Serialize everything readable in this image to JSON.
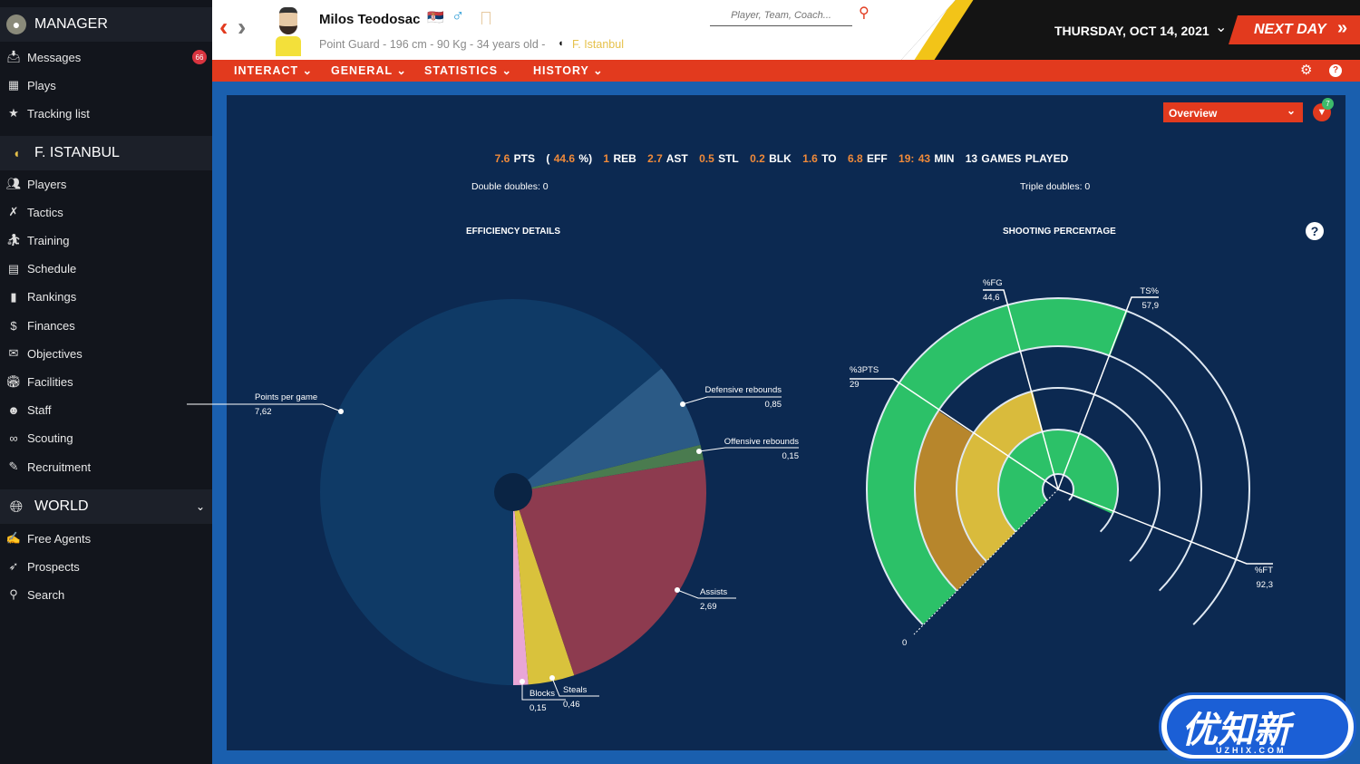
{
  "sidebar": {
    "manager": {
      "title": "MANAGER",
      "items": [
        {
          "label": "Messages",
          "icon": "inbox-icon",
          "badge": "66"
        },
        {
          "label": "Plays",
          "icon": "playbook-icon"
        },
        {
          "label": "Tracking list",
          "icon": "star-icon"
        }
      ]
    },
    "team": {
      "title": "F. ISTANBUL",
      "items": [
        {
          "label": "Players",
          "icon": "players-icon"
        },
        {
          "label": "Tactics",
          "icon": "tactics-icon"
        },
        {
          "label": "Training",
          "icon": "training-icon"
        },
        {
          "label": "Schedule",
          "icon": "calendar-icon"
        },
        {
          "label": "Rankings",
          "icon": "rankings-icon"
        },
        {
          "label": "Finances",
          "icon": "finances-icon"
        },
        {
          "label": "Objectives",
          "icon": "objectives-icon"
        },
        {
          "label": "Facilities",
          "icon": "facilities-icon"
        },
        {
          "label": "Staff",
          "icon": "staff-icon"
        },
        {
          "label": "Scouting",
          "icon": "binoculars-icon"
        },
        {
          "label": "Recruitment",
          "icon": "recruitment-icon"
        }
      ]
    },
    "world": {
      "title": "WORLD",
      "items": [
        {
          "label": "Free Agents",
          "icon": "free-agents-icon"
        },
        {
          "label": "Prospects",
          "icon": "rocket-icon"
        },
        {
          "label": "Search",
          "icon": "search-icon"
        }
      ]
    }
  },
  "header": {
    "player_name": "Milos Teodosac",
    "details": "Point Guard - 196 cm - 90 Kg - 34 years old -",
    "team": "F. Istanbul",
    "search_placeholder": "Player, Team, Coach...",
    "date": "THURSDAY, OCT 14, 2021",
    "next_day": "NEXT DAY",
    "colors": {
      "accent": "#e23a1e",
      "team": "#e6c14a"
    }
  },
  "nav": [
    "INTERACT",
    "GENERAL",
    "STATISTICS",
    "HISTORY"
  ],
  "main": {
    "view_select": "Overview",
    "filter_badge": "7",
    "stats": [
      {
        "v": "7.6",
        "l": "PTS"
      },
      {
        "v": "(",
        "l": ""
      },
      {
        "v": "44.6",
        "l": "%)"
      },
      {
        "v": "1",
        "l": "REB"
      },
      {
        "v": "2.7",
        "l": "AST"
      },
      {
        "v": "0.5",
        "l": "STL"
      },
      {
        "v": "0.2",
        "l": "BLK"
      },
      {
        "v": "1.6",
        "l": "TO"
      },
      {
        "v": "6.8",
        "l": "EFF"
      },
      {
        "v": "19: 43",
        "l": "MIN"
      },
      {
        "v": "",
        "l": "13 GAMES PLAYED"
      }
    ],
    "double_doubles": "Double doubles:  0",
    "triple_doubles": "Triple doubles:  0",
    "efficiency_title": "EFFICIENCY DETAILS",
    "shooting_title": "SHOOTING PERCENTAGE"
  },
  "chart_data": [
    {
      "type": "pie",
      "title": "EFFICIENCY DETAILS",
      "slices": [
        {
          "label": "Blocks",
          "value": 0.15,
          "display": "0,15",
          "color": "#e9a6d6"
        },
        {
          "label": "Steals",
          "value": 0.46,
          "display": "0,46",
          "color": "#d9c23c"
        },
        {
          "label": "Assists",
          "value": 2.69,
          "display": "2,69",
          "color": "#8d3b4f"
        },
        {
          "label": "Offensive rebounds",
          "value": 0.15,
          "display": "0,15",
          "color": "#4a7b4f"
        },
        {
          "label": "Defensive rebounds",
          "value": 0.85,
          "display": "0,85",
          "color": "#2b5a86"
        },
        {
          "label": "Points per game",
          "value": 7.62,
          "display": "7,62",
          "color": "#0f3a66"
        }
      ]
    },
    {
      "type": "radial-bar",
      "title": "SHOOTING PERCENTAGE",
      "range": [
        0,
        100
      ],
      "zero_label": "0",
      "series": [
        {
          "label": "TS%",
          "value": 57.9,
          "display": "57,9",
          "color": "#2cc168"
        },
        {
          "label": "%3PTS",
          "value": 29,
          "display": "29",
          "color": "#b7862c"
        },
        {
          "label": "%FG",
          "value": 44.6,
          "display": "44,6",
          "color": "#d9bb3c"
        },
        {
          "label": "%FT",
          "value": 92.3,
          "display": "92,3",
          "color": "#2cc168"
        }
      ]
    }
  ],
  "watermark": {
    "text": "优知新",
    "sub": "UZHIX.COM"
  }
}
